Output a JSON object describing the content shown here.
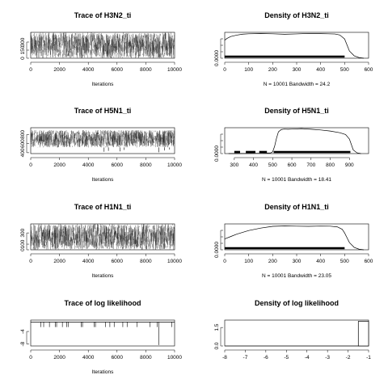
{
  "chart_data": [
    {
      "type": "line",
      "kind": "trace",
      "title": "Trace of H3N2_ti",
      "xlabel": "Iterations",
      "xlim": [
        0,
        10000
      ],
      "xticks": [
        "0",
        "2000",
        "4000",
        "6000",
        "8000",
        "10000"
      ],
      "ylim": [
        0,
        480
      ],
      "yticks": [
        "0",
        "150",
        "300"
      ],
      "band": [
        0,
        480
      ],
      "spikes": []
    },
    {
      "type": "line",
      "kind": "density",
      "title": "Density of H3N2_ti",
      "xlabel": "N = 10001   Bandwidth = 24.2",
      "xlim": [
        0,
        600
      ],
      "xticks": [
        "0",
        "100",
        "200",
        "300",
        "400",
        "500",
        "600"
      ],
      "ylim": [
        0,
        0.00215
      ],
      "yticks": [
        "0.0000"
      ],
      "x": [
        0,
        10,
        25,
        50,
        75,
        100,
        150,
        200,
        250,
        300,
        350,
        400,
        430,
        460,
        480,
        500,
        510,
        520,
        540,
        560,
        580
      ],
      "y": [
        0.0015,
        0.00165,
        0.0018,
        0.00192,
        0.002,
        0.00203,
        0.00205,
        0.00203,
        0.00199,
        0.00202,
        0.00206,
        0.00204,
        0.00203,
        0.00201,
        0.00193,
        0.0016,
        0.0011,
        0.0006,
        0.0002,
        5e-05,
        0
      ],
      "rug": [
        [
          0,
          500
        ]
      ]
    },
    {
      "type": "line",
      "kind": "trace",
      "title": "Trace of H5N1_ti",
      "xlabel": "Iterations",
      "xlim": [
        0,
        10000
      ],
      "xticks": [
        "0",
        "2000",
        "4000",
        "6000",
        "8000",
        "10000"
      ],
      "ylim": [
        380,
        950
      ],
      "yticks": [
        "400",
        "600",
        "800"
      ],
      "band": [
        515,
        900
      ],
      "spikes": [
        [
          5100,
          420
        ],
        [
          5400,
          440
        ],
        [
          6200,
          430
        ],
        [
          6500,
          460
        ],
        [
          8900,
          410
        ],
        [
          9300,
          450
        ],
        [
          9650,
          470
        ]
      ]
    },
    {
      "type": "line",
      "kind": "density",
      "title": "Density of H5N1_ti",
      "xlabel": "N = 10001   Bandwidth = 18.41",
      "xlim": [
        250,
        1000
      ],
      "xticks": [
        "300",
        "400",
        "500",
        "600",
        "700",
        "800",
        "900"
      ],
      "ylim": [
        0,
        0.00285
      ],
      "yticks": [
        "0.0000"
      ],
      "x": [
        270,
        350,
        450,
        490,
        500,
        510,
        520,
        530,
        545,
        560,
        580,
        600,
        650,
        700,
        750,
        800,
        850,
        880,
        900,
        910,
        920,
        940,
        960
      ],
      "y": [
        0,
        1e-05,
        4e-05,
        8e-05,
        0.0002,
        0.0008,
        0.0017,
        0.0024,
        0.00265,
        0.0027,
        0.00268,
        0.0027,
        0.00275,
        0.00268,
        0.0026,
        0.00248,
        0.0023,
        0.0021,
        0.0016,
        0.001,
        0.0004,
        8e-05,
        0
      ],
      "rug": [
        [
          505,
          905
        ],
        [
          300,
          330
        ],
        [
          360,
          410
        ],
        [
          430,
          470
        ]
      ]
    },
    {
      "type": "line",
      "kind": "trace",
      "title": "Trace of H1N1_ti",
      "xlabel": "Iterations",
      "xlim": [
        0,
        10000
      ],
      "xticks": [
        "0",
        "2000",
        "4000",
        "6000",
        "8000",
        "10000"
      ],
      "ylim": [
        0,
        460
      ],
      "yticks": [
        "0",
        "100",
        "300"
      ],
      "band": [
        0,
        460
      ],
      "spikes": []
    },
    {
      "type": "line",
      "kind": "density",
      "title": "Density of H1N1_ti",
      "xlabel": "N = 10001   Bandwidth = 23.05",
      "xlim": [
        0,
        600
      ],
      "xticks": [
        "0",
        "100",
        "200",
        "300",
        "400",
        "500",
        "600"
      ],
      "ylim": [
        0,
        0.00215
      ],
      "yticks": [
        "0.0000"
      ],
      "x": [
        0,
        25,
        50,
        100,
        150,
        200,
        250,
        300,
        350,
        400,
        440,
        470,
        490,
        500,
        510,
        520,
        540,
        560,
        580
      ],
      "y": [
        0.0009,
        0.0011,
        0.0013,
        0.0016,
        0.0018,
        0.00195,
        0.00198,
        0.00196,
        0.00195,
        0.00197,
        0.00196,
        0.0019,
        0.0017,
        0.0014,
        0.001,
        0.0006,
        0.0002,
        5e-05,
        0
      ],
      "rug": [
        [
          0,
          500
        ]
      ]
    },
    {
      "type": "line",
      "kind": "trace",
      "title": "Trace of log likelihood",
      "xlabel": "Iterations",
      "xlim": [
        0,
        10000
      ],
      "xticks": [
        "0",
        "2000",
        "4000",
        "6000",
        "8000",
        "10000"
      ],
      "ylim": [
        -8.6,
        -0.4
      ],
      "yticks": [
        "-8",
        "-4"
      ],
      "baseline": -1,
      "spikes": [
        [
          700,
          -2.6
        ],
        [
          900,
          -2.6
        ],
        [
          1300,
          -2.6
        ],
        [
          1700,
          -2.6
        ],
        [
          1800,
          -2.6
        ],
        [
          2200,
          -2.6
        ],
        [
          2500,
          -2.6
        ],
        [
          2600,
          -2.6
        ],
        [
          3500,
          -2.6
        ],
        [
          3600,
          -2.6
        ],
        [
          4400,
          -2.6
        ],
        [
          4500,
          -2.6
        ],
        [
          5200,
          -2.6
        ],
        [
          5500,
          -2.6
        ],
        [
          5800,
          -2.6
        ],
        [
          6400,
          -2.6
        ],
        [
          6700,
          -2.6
        ],
        [
          7400,
          -2.6
        ],
        [
          8300,
          -2.6
        ],
        [
          8800,
          -2.6
        ],
        [
          8900,
          -8.3
        ],
        [
          9800,
          -2.6
        ]
      ]
    },
    {
      "type": "bar",
      "kind": "histogram",
      "title": "Density of log likelihood",
      "xlabel": "",
      "xlim": [
        -8,
        -1
      ],
      "xticks": [
        "-8",
        "-7",
        "-6",
        "-5",
        "-4",
        "-3",
        "-2",
        "-1"
      ],
      "ylim": [
        0,
        2.1
      ],
      "yticks": [
        "0.0",
        "1.5"
      ],
      "bins": [
        [
          -1.5,
          -1,
          2
        ]
      ]
    }
  ]
}
